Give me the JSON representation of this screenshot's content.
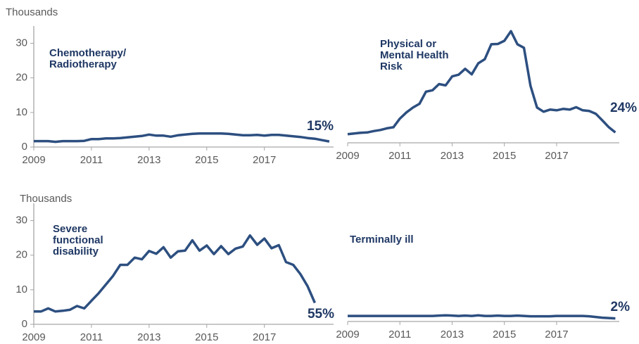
{
  "chart_data": [
    {
      "type": "line",
      "y_label": "Thousands",
      "annotation": "15%",
      "x": [
        2009,
        2009.25,
        2009.5,
        2009.75,
        2010,
        2010.25,
        2010.5,
        2010.75,
        2011,
        2011.25,
        2011.5,
        2011.75,
        2012,
        2012.25,
        2012.5,
        2012.75,
        2013,
        2013.25,
        2013.5,
        2013.75,
        2014,
        2014.25,
        2014.5,
        2014.75,
        2015,
        2015.25,
        2015.5,
        2015.75,
        2016,
        2016.25,
        2016.5,
        2016.75,
        2017,
        2017.25,
        2017.5,
        2017.75,
        2018,
        2018.25,
        2018.5,
        2018.75,
        2019,
        2019.25
      ],
      "series": [
        {
          "name": "Chemotherapy/ Radiotherapy",
          "color": "#2d4f80",
          "values": [
            1.7,
            1.7,
            1.7,
            1.5,
            1.7,
            1.7,
            1.7,
            1.8,
            2.3,
            2.3,
            2.5,
            2.5,
            2.6,
            2.8,
            3.0,
            3.2,
            3.6,
            3.3,
            3.3,
            3.0,
            3.4,
            3.6,
            3.8,
            3.9,
            3.9,
            3.9,
            3.9,
            3.8,
            3.6,
            3.4,
            3.4,
            3.5,
            3.3,
            3.5,
            3.5,
            3.3,
            3.1,
            2.9,
            2.6,
            2.4,
            2.0,
            1.6
          ]
        }
      ],
      "xlim": [
        2009,
        2019.4
      ],
      "xticks": [
        2009,
        2011,
        2013,
        2015,
        2017
      ],
      "ylim": [
        0,
        35
      ],
      "yticks": [
        0,
        10,
        20,
        30
      ]
    },
    {
      "type": "line",
      "annotation": "24%",
      "x": [
        2009,
        2009.25,
        2009.5,
        2009.75,
        2010,
        2010.25,
        2010.5,
        2010.75,
        2011,
        2011.25,
        2011.5,
        2011.75,
        2012,
        2012.25,
        2012.5,
        2012.75,
        2013,
        2013.25,
        2013.5,
        2013.75,
        2014,
        2014.25,
        2014.5,
        2014.75,
        2015,
        2015.25,
        2015.5,
        2015.75,
        2016,
        2016.25,
        2016.5,
        2016.75,
        2017,
        2017.25,
        2017.5,
        2017.75,
        2018,
        2018.25,
        2018.5,
        2018.75,
        2019,
        2019.25
      ],
      "series": [
        {
          "name": "Physical or Mental Health Risk",
          "color": "#2d4f80",
          "values": [
            2.5,
            2.7,
            2.9,
            3.0,
            3.4,
            3.7,
            4.2,
            4.5,
            7.0,
            8.8,
            10.2,
            11.3,
            14.8,
            15.2,
            17.0,
            16.6,
            19.2,
            19.7,
            21.4,
            19.8,
            23.0,
            24.2,
            28.5,
            28.6,
            29.5,
            32.3,
            28.5,
            27.5,
            16.5,
            10.2,
            9.0,
            9.6,
            9.4,
            9.8,
            9.6,
            10.3,
            9.4,
            9.2,
            8.4,
            6.5,
            4.5,
            3.0
          ]
        }
      ],
      "xlim": [
        2009,
        2019.4
      ],
      "xticks": [
        2009,
        2011,
        2013,
        2015,
        2017
      ],
      "ylim": [
        0,
        35
      ]
    },
    {
      "type": "line",
      "y_label": "Thousands",
      "annotation": "55%",
      "x": [
        2009,
        2009.25,
        2009.5,
        2009.75,
        2010,
        2010.25,
        2010.5,
        2010.75,
        2011,
        2011.25,
        2011.5,
        2011.75,
        2012,
        2012.25,
        2012.5,
        2012.75,
        2013,
        2013.25,
        2013.5,
        2013.75,
        2014,
        2014.25,
        2014.5,
        2014.75,
        2015,
        2015.25,
        2015.5,
        2015.75,
        2016,
        2016.25,
        2016.5,
        2016.75,
        2017,
        2017.25,
        2017.5,
        2017.75,
        2018,
        2018.25,
        2018.5,
        2018.75
      ],
      "series": [
        {
          "name": "Severe functional disability",
          "color": "#2d4f80",
          "values": [
            3.7,
            3.7,
            4.6,
            3.7,
            3.9,
            4.2,
            5.3,
            4.6,
            6.8,
            9.0,
            11.5,
            14.0,
            17.2,
            17.2,
            19.3,
            18.8,
            21.2,
            20.4,
            22.3,
            19.3,
            21.1,
            21.3,
            24.3,
            21.3,
            22.8,
            20.3,
            22.6,
            20.3,
            21.9,
            22.5,
            25.7,
            23.0,
            24.8,
            22.0,
            22.9,
            18.0,
            17.2,
            14.5,
            11.0,
            6.2
          ]
        }
      ],
      "xlim": [
        2009,
        2019.4
      ],
      "xticks": [
        2009,
        2011,
        2013,
        2015,
        2017
      ],
      "ylim": [
        0,
        35
      ],
      "yticks": [
        0,
        10,
        20,
        30
      ]
    },
    {
      "type": "line",
      "annotation": "2%",
      "x": [
        2009,
        2009.25,
        2009.5,
        2009.75,
        2010,
        2010.25,
        2010.5,
        2010.75,
        2011,
        2011.25,
        2011.5,
        2011.75,
        2012,
        2012.25,
        2012.5,
        2012.75,
        2013,
        2013.25,
        2013.5,
        2013.75,
        2014,
        2014.25,
        2014.5,
        2014.75,
        2015,
        2015.25,
        2015.5,
        2015.75,
        2016,
        2016.25,
        2016.5,
        2016.75,
        2017,
        2017.25,
        2017.5,
        2017.75,
        2018,
        2018.25,
        2018.5,
        2018.75,
        2019,
        2019.25
      ],
      "series": [
        {
          "name": "Terminally ill",
          "color": "#2d4f80",
          "values": [
            1.6,
            1.6,
            1.6,
            1.6,
            1.6,
            1.6,
            1.6,
            1.6,
            1.6,
            1.6,
            1.6,
            1.6,
            1.6,
            1.6,
            1.7,
            1.8,
            1.7,
            1.6,
            1.7,
            1.6,
            1.8,
            1.6,
            1.6,
            1.7,
            1.6,
            1.6,
            1.7,
            1.6,
            1.5,
            1.5,
            1.5,
            1.5,
            1.6,
            1.6,
            1.6,
            1.6,
            1.6,
            1.5,
            1.3,
            1.1,
            1.0,
            0.9
          ]
        }
      ],
      "xlim": [
        2009,
        2019.4
      ],
      "xticks": [
        2009,
        2011,
        2013,
        2015,
        2017
      ],
      "ylim": [
        0,
        35
      ]
    }
  ]
}
